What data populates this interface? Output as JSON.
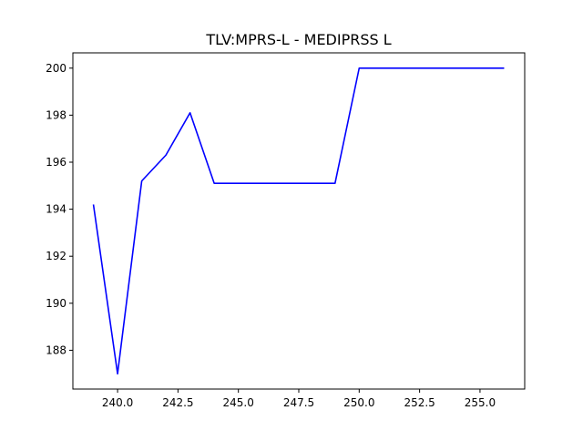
{
  "chart_data": {
    "type": "line",
    "title": "TLV:MPRS-L - MEDIPRSS L",
    "xlabel": "",
    "ylabel": "",
    "x": [
      239,
      240,
      241,
      242,
      243,
      244,
      245,
      246,
      247,
      248,
      249,
      250,
      251,
      252,
      253,
      254,
      255,
      256
    ],
    "series": [
      {
        "values": [
          194.2,
          187.0,
          195.2,
          196.3,
          198.1,
          195.1,
          195.1,
          195.1,
          195.1,
          195.1,
          195.1,
          200.0,
          200.0,
          200.0,
          200.0,
          200.0,
          200.0,
          200.0
        ],
        "color": "#0000ff"
      }
    ],
    "xlim": [
      238.15,
      256.85
    ],
    "ylim": [
      186.35,
      200.65
    ],
    "x_ticks": [
      240,
      242.5,
      245,
      247.5,
      250,
      252.5,
      255
    ],
    "x_tick_labels": [
      "240.0",
      "242.5",
      "245.0",
      "247.5",
      "250.0",
      "252.5",
      "255.0"
    ],
    "y_ticks": [
      188,
      190,
      192,
      194,
      196,
      198,
      200
    ],
    "y_tick_labels": [
      "188",
      "190",
      "192",
      "194",
      "196",
      "198",
      "200"
    ],
    "grid": false,
    "legend": "none"
  }
}
